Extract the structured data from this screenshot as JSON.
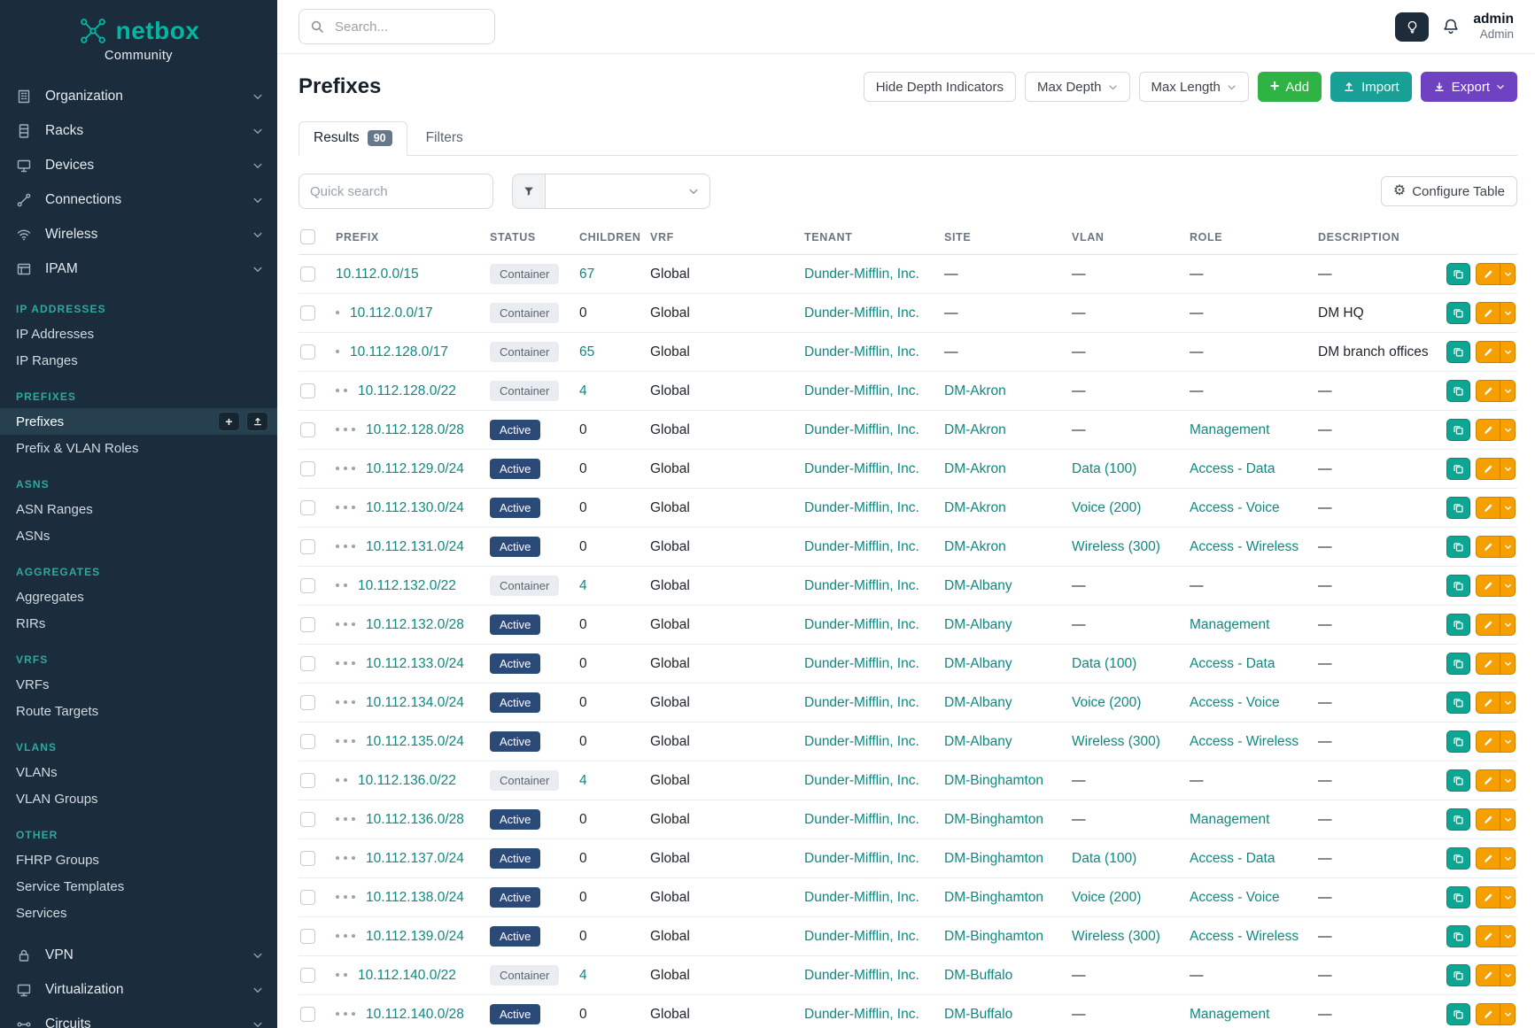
{
  "theme": {
    "sidebar_bg": "#1b2c3d",
    "brand_teal": "#00b8a2",
    "section_teal": "#2fa99e",
    "link_color": "#0d8a80",
    "active_badge_bg": "#2c4a77",
    "container_badge_bg": "#e9edf1",
    "container_badge_text": "#5c6670",
    "add_green": "#2fb344",
    "import_teal": "#18a096",
    "export_purple": "#6f42c1",
    "copy_teal": "#0ea593",
    "edit_orange": "#f59f00",
    "tab_badge_bg": "#68788b"
  },
  "sidebar": {
    "logo": {
      "brand": "netbox",
      "subtitle": "Community"
    },
    "top_items": [
      {
        "label": "Organization",
        "icon": "building-icon"
      },
      {
        "label": "Racks",
        "icon": "rack-icon"
      },
      {
        "label": "Devices",
        "icon": "device-icon"
      },
      {
        "label": "Connections",
        "icon": "cable-icon"
      },
      {
        "label": "Wireless",
        "icon": "wifi-icon"
      },
      {
        "label": "IPAM",
        "icon": "ipam-icon"
      }
    ],
    "sections": [
      {
        "title": "IP ADDRESSES",
        "items": [
          {
            "label": "IP Addresses"
          },
          {
            "label": "IP Ranges"
          }
        ]
      },
      {
        "title": "PREFIXES",
        "items": [
          {
            "label": "Prefixes",
            "active": true,
            "quick_actions": [
              "plus-icon",
              "upload-icon"
            ]
          },
          {
            "label": "Prefix & VLAN Roles"
          }
        ]
      },
      {
        "title": "ASNS",
        "items": [
          {
            "label": "ASN Ranges"
          },
          {
            "label": "ASNs"
          }
        ]
      },
      {
        "title": "AGGREGATES",
        "items": [
          {
            "label": "Aggregates"
          },
          {
            "label": "RIRs"
          }
        ]
      },
      {
        "title": "VRFS",
        "items": [
          {
            "label": "VRFs"
          },
          {
            "label": "Route Targets"
          }
        ]
      },
      {
        "title": "VLANS",
        "items": [
          {
            "label": "VLANs"
          },
          {
            "label": "VLAN Groups"
          }
        ]
      },
      {
        "title": "OTHER",
        "items": [
          {
            "label": "FHRP Groups"
          },
          {
            "label": "Service Templates"
          },
          {
            "label": "Services"
          }
        ]
      }
    ],
    "bottom_items": [
      {
        "label": "VPN",
        "icon": "lock-icon"
      },
      {
        "label": "Virtualization",
        "icon": "monitor-icon"
      },
      {
        "label": "Circuits",
        "icon": "circuit-icon"
      }
    ]
  },
  "topbar": {
    "search_placeholder": "Search...",
    "user": {
      "name": "admin",
      "role": "Admin"
    }
  },
  "page": {
    "title": "Prefixes",
    "toolbar": {
      "hide_depth_label": "Hide Depth Indicators",
      "max_depth_label": "Max Depth",
      "max_length_label": "Max Length",
      "add_label": "Add",
      "import_label": "Import",
      "export_label": "Export"
    },
    "tabs": [
      {
        "label": "Results",
        "count": "90",
        "active": true
      },
      {
        "label": "Filters",
        "active": false
      }
    ],
    "quick_search_placeholder": "Quick search",
    "configure_table_label": "Configure Table"
  },
  "table": {
    "columns": [
      "PREFIX",
      "STATUS",
      "CHILDREN",
      "VRF",
      "TENANT",
      "SITE",
      "VLAN",
      "ROLE",
      "DESCRIPTION"
    ],
    "rows": [
      {
        "prefix": "10.112.0.0/15",
        "depth": 0,
        "status": "Container",
        "children": "67",
        "vrf": "Global",
        "tenant": "Dunder-Mifflin, Inc.",
        "site": "—",
        "vlan": "—",
        "role": "—",
        "description": "—"
      },
      {
        "prefix": "10.112.0.0/17",
        "depth": 1,
        "status": "Container",
        "children": "0",
        "vrf": "Global",
        "tenant": "Dunder-Mifflin, Inc.",
        "site": "—",
        "vlan": "—",
        "role": "—",
        "description": "DM HQ"
      },
      {
        "prefix": "10.112.128.0/17",
        "depth": 1,
        "status": "Container",
        "children": "65",
        "vrf": "Global",
        "tenant": "Dunder-Mifflin, Inc.",
        "site": "—",
        "vlan": "—",
        "role": "—",
        "description": "DM branch offices"
      },
      {
        "prefix": "10.112.128.0/22",
        "depth": 2,
        "status": "Container",
        "children": "4",
        "vrf": "Global",
        "tenant": "Dunder-Mifflin, Inc.",
        "site": "DM-Akron",
        "vlan": "—",
        "role": "—",
        "description": "—"
      },
      {
        "prefix": "10.112.128.0/28",
        "depth": 3,
        "status": "Active",
        "children": "0",
        "vrf": "Global",
        "tenant": "Dunder-Mifflin, Inc.",
        "site": "DM-Akron",
        "vlan": "—",
        "role": "Management",
        "description": "—"
      },
      {
        "prefix": "10.112.129.0/24",
        "depth": 3,
        "status": "Active",
        "children": "0",
        "vrf": "Global",
        "tenant": "Dunder-Mifflin, Inc.",
        "site": "DM-Akron",
        "vlan": "Data (100)",
        "role": "Access - Data",
        "description": "—"
      },
      {
        "prefix": "10.112.130.0/24",
        "depth": 3,
        "status": "Active",
        "children": "0",
        "vrf": "Global",
        "tenant": "Dunder-Mifflin, Inc.",
        "site": "DM-Akron",
        "vlan": "Voice (200)",
        "role": "Access - Voice",
        "description": "—"
      },
      {
        "prefix": "10.112.131.0/24",
        "depth": 3,
        "status": "Active",
        "children": "0",
        "vrf": "Global",
        "tenant": "Dunder-Mifflin, Inc.",
        "site": "DM-Akron",
        "vlan": "Wireless (300)",
        "role": "Access - Wireless",
        "description": "—"
      },
      {
        "prefix": "10.112.132.0/22",
        "depth": 2,
        "status": "Container",
        "children": "4",
        "vrf": "Global",
        "tenant": "Dunder-Mifflin, Inc.",
        "site": "DM-Albany",
        "vlan": "—",
        "role": "—",
        "description": "—"
      },
      {
        "prefix": "10.112.132.0/28",
        "depth": 3,
        "status": "Active",
        "children": "0",
        "vrf": "Global",
        "tenant": "Dunder-Mifflin, Inc.",
        "site": "DM-Albany",
        "vlan": "—",
        "role": "Management",
        "description": "—"
      },
      {
        "prefix": "10.112.133.0/24",
        "depth": 3,
        "status": "Active",
        "children": "0",
        "vrf": "Global",
        "tenant": "Dunder-Mifflin, Inc.",
        "site": "DM-Albany",
        "vlan": "Data (100)",
        "role": "Access - Data",
        "description": "—"
      },
      {
        "prefix": "10.112.134.0/24",
        "depth": 3,
        "status": "Active",
        "children": "0",
        "vrf": "Global",
        "tenant": "Dunder-Mifflin, Inc.",
        "site": "DM-Albany",
        "vlan": "Voice (200)",
        "role": "Access - Voice",
        "description": "—"
      },
      {
        "prefix": "10.112.135.0/24",
        "depth": 3,
        "status": "Active",
        "children": "0",
        "vrf": "Global",
        "tenant": "Dunder-Mifflin, Inc.",
        "site": "DM-Albany",
        "vlan": "Wireless (300)",
        "role": "Access - Wireless",
        "description": "—"
      },
      {
        "prefix": "10.112.136.0/22",
        "depth": 2,
        "status": "Container",
        "children": "4",
        "vrf": "Global",
        "tenant": "Dunder-Mifflin, Inc.",
        "site": "DM-Binghamton",
        "vlan": "—",
        "role": "—",
        "description": "—"
      },
      {
        "prefix": "10.112.136.0/28",
        "depth": 3,
        "status": "Active",
        "children": "0",
        "vrf": "Global",
        "tenant": "Dunder-Mifflin, Inc.",
        "site": "DM-Binghamton",
        "vlan": "—",
        "role": "Management",
        "description": "—"
      },
      {
        "prefix": "10.112.137.0/24",
        "depth": 3,
        "status": "Active",
        "children": "0",
        "vrf": "Global",
        "tenant": "Dunder-Mifflin, Inc.",
        "site": "DM-Binghamton",
        "vlan": "Data (100)",
        "role": "Access - Data",
        "description": "—"
      },
      {
        "prefix": "10.112.138.0/24",
        "depth": 3,
        "status": "Active",
        "children": "0",
        "vrf": "Global",
        "tenant": "Dunder-Mifflin, Inc.",
        "site": "DM-Binghamton",
        "vlan": "Voice (200)",
        "role": "Access - Voice",
        "description": "—"
      },
      {
        "prefix": "10.112.139.0/24",
        "depth": 3,
        "status": "Active",
        "children": "0",
        "vrf": "Global",
        "tenant": "Dunder-Mifflin, Inc.",
        "site": "DM-Binghamton",
        "vlan": "Wireless (300)",
        "role": "Access - Wireless",
        "description": "—"
      },
      {
        "prefix": "10.112.140.0/22",
        "depth": 2,
        "status": "Container",
        "children": "4",
        "vrf": "Global",
        "tenant": "Dunder-Mifflin, Inc.",
        "site": "DM-Buffalo",
        "vlan": "—",
        "role": "—",
        "description": "—"
      },
      {
        "prefix": "10.112.140.0/28",
        "depth": 3,
        "status": "Active",
        "children": "0",
        "vrf": "Global",
        "tenant": "Dunder-Mifflin, Inc.",
        "site": "DM-Buffalo",
        "vlan": "—",
        "role": "Management",
        "description": "—"
      }
    ]
  }
}
